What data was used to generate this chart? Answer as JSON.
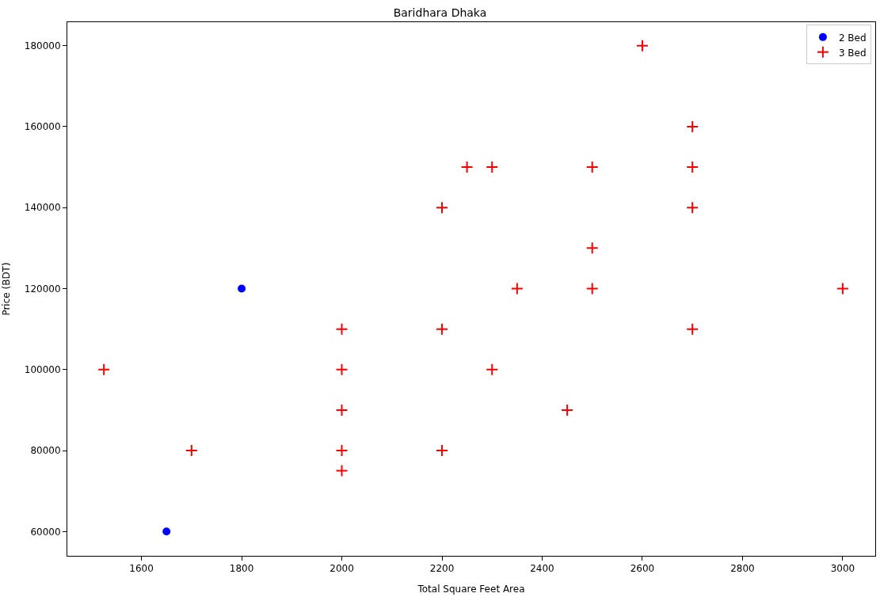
{
  "chart_data": {
    "type": "scatter",
    "title": "Baridhara Dhaka",
    "xlabel": "Total Square Feet Area",
    "ylabel": "Price (BDT)",
    "xlim": [
      1452,
      3065
    ],
    "ylim": [
      54000,
      185800
    ],
    "xticks": [
      1600,
      1800,
      2000,
      2200,
      2400,
      2600,
      2800,
      3000
    ],
    "yticks": [
      60000,
      80000,
      100000,
      120000,
      140000,
      160000,
      180000
    ],
    "legend": "top right",
    "series": [
      {
        "name": "2 Bed",
        "color": "#0000ff",
        "marker": "circle",
        "x": [
          1650,
          1800
        ],
        "values": [
          60000,
          120000
        ]
      },
      {
        "name": "3 Bed",
        "color": "#ff0000",
        "marker": "cross",
        "x": [
          1525,
          1700,
          2000,
          2000,
          2000,
          2000,
          2000,
          2200,
          2200,
          2200,
          2250,
          2300,
          2300,
          2350,
          2450,
          2500,
          2500,
          2500,
          2600,
          2700,
          2700,
          2700,
          2700,
          3000
        ],
        "values": [
          100000,
          80000,
          110000,
          100000,
          90000,
          80000,
          75000,
          140000,
          110000,
          80000,
          150000,
          150000,
          100000,
          120000,
          90000,
          150000,
          130000,
          120000,
          180000,
          160000,
          150000,
          140000,
          110000,
          120000
        ]
      }
    ]
  }
}
